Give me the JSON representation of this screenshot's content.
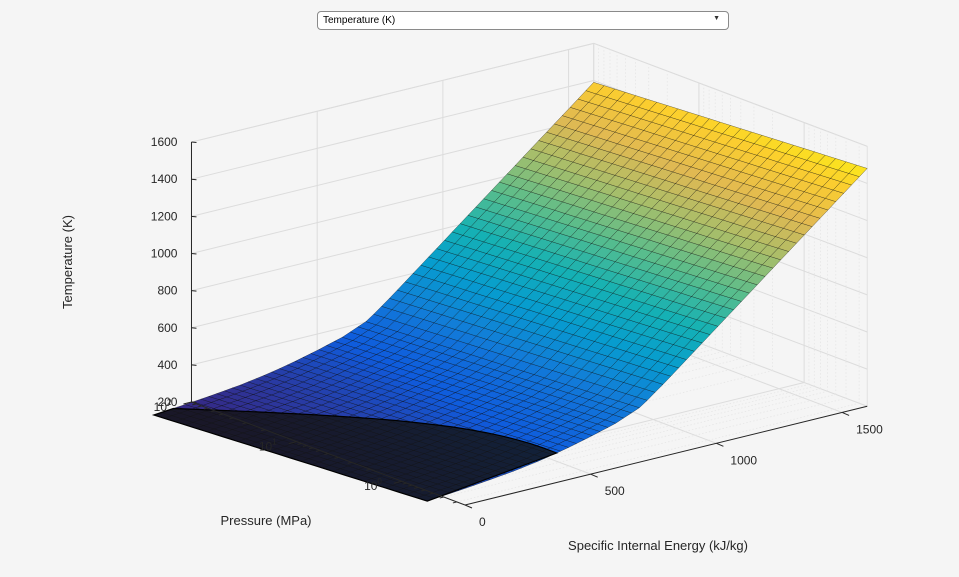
{
  "dropdown": {
    "selected": "Temperature (K)",
    "icon": "chevron-down-icon"
  },
  "chart_data": {
    "type": "surface",
    "colormap": "parula",
    "grid": true,
    "xlabel": "Specific Internal Energy (kJ/kg)",
    "ylabel": "Pressure (MPa)",
    "zlabel": "Temperature (K)",
    "x_ticks": [
      "0",
      "500",
      "1000",
      "1500"
    ],
    "y_ticks": [
      "10",
      "10",
      "10"
    ],
    "y_tick_exponents": [
      "2",
      "1",
      "0"
    ],
    "z_ticks": [
      "200",
      "400",
      "600",
      "800",
      "1000",
      "1200",
      "1400",
      "1600"
    ],
    "xlim": [
      0,
      1600
    ],
    "ylim_log": [
      -0.6,
      2
    ],
    "zlim": [
      200,
      1600
    ],
    "y_scale": "log",
    "surface_profile": {
      "energy": [
        -150,
        0,
        100,
        200,
        300,
        400,
        500,
        600,
        700,
        800,
        900,
        1000,
        1100,
        1200,
        1300,
        1400,
        1500,
        1600
      ],
      "temperature": [
        250,
        268,
        282,
        298,
        320,
        348,
        382,
        420,
        476,
        580,
        690,
        800,
        910,
        1020,
        1130,
        1240,
        1350,
        1460
      ]
    },
    "pressure_effect_K_per_decade": -35
  }
}
